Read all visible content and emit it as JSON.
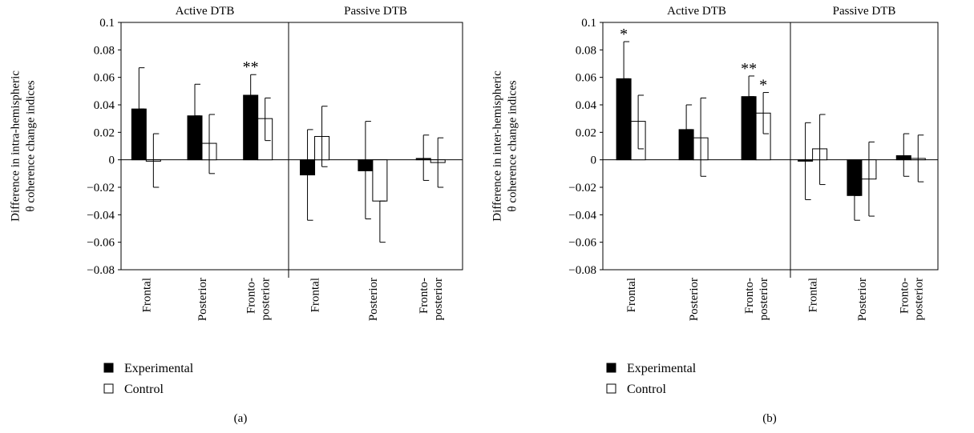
{
  "chart_data": [
    {
      "type": "bar",
      "panel_label": "(a)",
      "ylabel": [
        "Difference in intra-hemispheric",
        "θ coherence change indices"
      ],
      "ylim": [
        -0.08,
        0.1
      ],
      "yticks": [
        0.1,
        0.08,
        0.06,
        0.04,
        0.02,
        0,
        -0.02,
        -0.04,
        -0.06,
        -0.08
      ],
      "ytick_labels": [
        "0.1",
        "0.08",
        "0.06",
        "0.04",
        "0.02",
        "0",
        "−0.02",
        "−0.04",
        "−0.06",
        "−0.08"
      ],
      "groups": [
        "Active DTB",
        "Passive DTB"
      ],
      "categories": [
        {
          "group": 0,
          "label": [
            "Frontal"
          ]
        },
        {
          "group": 0,
          "label": [
            "Posterior"
          ]
        },
        {
          "group": 0,
          "label": [
            "Fronto-",
            "posterior"
          ]
        },
        {
          "group": 1,
          "label": [
            "Frontal"
          ]
        },
        {
          "group": 1,
          "label": [
            "Posterior"
          ]
        },
        {
          "group": 1,
          "label": [
            "Fronto-",
            "posterior"
          ]
        }
      ],
      "series": [
        {
          "name": "Experimental",
          "color": "#000000",
          "values": [
            0.037,
            0.032,
            0.047,
            -0.011,
            -0.008,
            0.001
          ],
          "error_high": [
            0.067,
            0.055,
            0.062,
            0.022,
            0.028,
            0.018
          ],
          "error_low": [
            0.037,
            0.032,
            0.047,
            -0.044,
            -0.043,
            -0.015
          ],
          "annotations": [
            "",
            "",
            "**",
            "",
            "",
            ""
          ]
        },
        {
          "name": "Control",
          "color": "#ffffff",
          "values": [
            -0.001,
            0.012,
            0.03,
            0.017,
            -0.03,
            -0.002
          ],
          "error_high": [
            0.019,
            0.033,
            0.045,
            0.039,
            -0.03,
            0.016
          ],
          "error_low": [
            -0.02,
            -0.01,
            0.014,
            -0.005,
            -0.06,
            -0.02
          ],
          "annotations": [
            "",
            "",
            "",
            "",
            "",
            ""
          ]
        }
      ],
      "legend_position": "bottom-left",
      "grid": false
    },
    {
      "type": "bar",
      "panel_label": "(b)",
      "ylabel": [
        "Difference in inter-hemispheric",
        "θ coherence change indices"
      ],
      "ylim": [
        -0.08,
        0.1
      ],
      "yticks": [
        0.1,
        0.08,
        0.06,
        0.04,
        0.02,
        0,
        -0.02,
        -0.04,
        -0.06,
        -0.08
      ],
      "ytick_labels": [
        "0.1",
        "0.08",
        "0.06",
        "0.04",
        "0.02",
        "0",
        "−0.02",
        "−0.04",
        "−0.06",
        "−0.08"
      ],
      "groups": [
        "Active DTB",
        "Passive DTB"
      ],
      "categories": [
        {
          "group": 0,
          "label": [
            "Frontal"
          ]
        },
        {
          "group": 0,
          "label": [
            "Posterior"
          ]
        },
        {
          "group": 0,
          "label": [
            "Fronto-",
            "posterior"
          ]
        },
        {
          "group": 1,
          "label": [
            "Frontal"
          ]
        },
        {
          "group": 1,
          "label": [
            "Posterior"
          ]
        },
        {
          "group": 1,
          "label": [
            "Fronto-",
            "posterior"
          ]
        }
      ],
      "series": [
        {
          "name": "Experimental",
          "color": "#000000",
          "values": [
            0.059,
            0.022,
            0.046,
            -0.001,
            -0.026,
            0.003
          ],
          "error_high": [
            0.086,
            0.04,
            0.061,
            0.027,
            -0.026,
            0.019
          ],
          "error_low": [
            0.059,
            0.022,
            0.046,
            -0.029,
            -0.044,
            -0.012
          ],
          "annotations": [
            "*",
            "",
            "**",
            "",
            "",
            ""
          ]
        },
        {
          "name": "Control",
          "color": "#ffffff",
          "values": [
            0.028,
            0.016,
            0.034,
            0.008,
            -0.014,
            0.001
          ],
          "error_high": [
            0.047,
            0.045,
            0.049,
            0.033,
            0.013,
            0.018
          ],
          "error_low": [
            0.008,
            -0.012,
            0.019,
            -0.018,
            -0.041,
            -0.016
          ],
          "annotations": [
            "",
            "",
            "*",
            "",
            "",
            ""
          ]
        }
      ],
      "legend_position": "bottom-left",
      "grid": false
    }
  ]
}
